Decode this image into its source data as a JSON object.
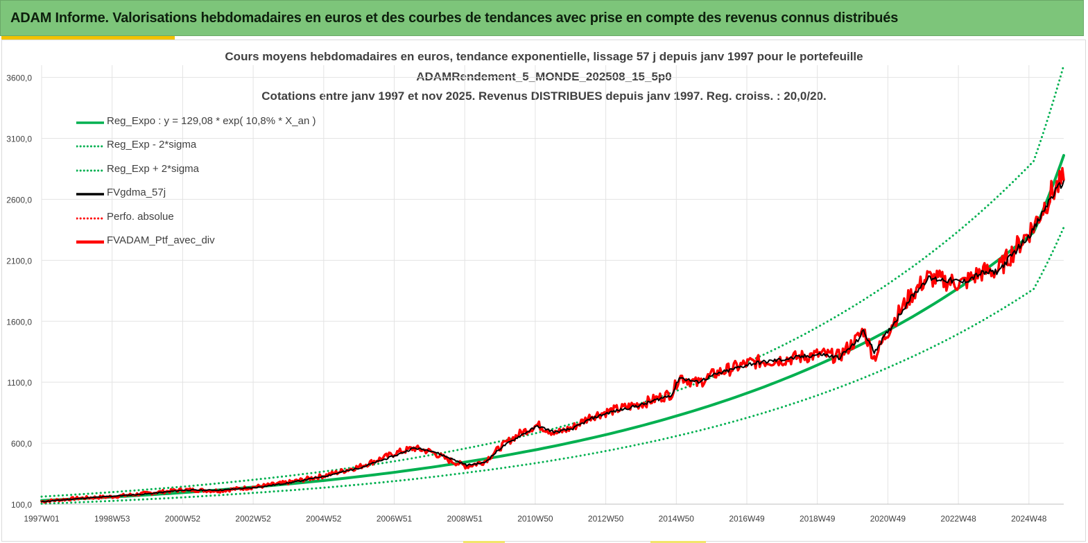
{
  "banner": {
    "title": "ADAM Informe. Valorisations hebdomadaires en euros et des courbes de tendances avec prise en compte des revenus connus distribués"
  },
  "colors": {
    "banner_bg": "#7dc57a",
    "accent": "#f2c200",
    "reg_expo": "#00b050",
    "reg_bands": "#00b050",
    "fvgdma": "#000000",
    "perfo": "#ff0000",
    "ptf": "#ff0000",
    "gridline": "#e3e3e3",
    "text": "#404040"
  },
  "chart_data": {
    "type": "line",
    "title_lines": [
      "Cours moyens hebdomadaires  en euros, tendance exponentielle, lissage 57 j depuis janv 1997 pour le portefeuille",
      "ADAMRendement_5_MONDE_202508_15_5p0",
      "Cotations  entre janv 1997 et nov 2025. Revenus DISTRIBUES depuis janv 1997. Reg. croiss. : 20,0/20."
    ],
    "xlabel": "",
    "ylabel": "",
    "x_ticks": [
      "1997W01",
      "1998W53",
      "2000W52",
      "2002W52",
      "2004W52",
      "2006W51",
      "2008W51",
      "2010W50",
      "2012W50",
      "2014W50",
      "2016W49",
      "2018W49",
      "2020W49",
      "2022W48",
      "2024W48"
    ],
    "x_range": [
      1997.0,
      2025.85
    ],
    "y_ticks": [
      "100,0",
      "600,0",
      "1100,0",
      "1600,0",
      "2100,0",
      "2600,0",
      "3100,0",
      "3600,0"
    ],
    "ylim": [
      100,
      3700
    ],
    "grid": true,
    "legend_position": "top-left",
    "series": [
      {
        "name": "Reg_Expo : y = 129,08 * exp( 10,8% *  X_an )",
        "style": "solid-thick",
        "color": "#00b050",
        "x": [
          1997,
          1999,
          2001,
          2003,
          2005,
          2007,
          2009,
          2011,
          2013,
          2015,
          2017,
          2019,
          2021,
          2023,
          2025,
          2025.85
        ],
        "y": [
          130,
          159,
          195,
          241,
          295,
          363,
          447,
          549,
          675,
          830,
          1020,
          1254,
          1542,
          1895,
          2330,
          2960
        ]
      },
      {
        "name": "Reg_Exp - 2*sigma",
        "style": "dotted",
        "color": "#00b050",
        "x": [
          1997,
          1999,
          2001,
          2003,
          2005,
          2007,
          2009,
          2011,
          2013,
          2015,
          2017,
          2019,
          2021,
          2023,
          2025,
          2025.85
        ],
        "y": [
          104,
          127,
          156,
          193,
          236,
          290,
          358,
          439,
          540,
          664,
          816,
          1003,
          1234,
          1516,
          1864,
          2370
        ]
      },
      {
        "name": "Reg_Exp + 2*sigma",
        "style": "dotted",
        "color": "#00b050",
        "x": [
          1997,
          1999,
          2001,
          2003,
          2005,
          2007,
          2009,
          2011,
          2013,
          2015,
          2017,
          2019,
          2021,
          2023,
          2025,
          2025.85
        ],
        "y": [
          162,
          199,
          244,
          301,
          369,
          454,
          559,
          686,
          844,
          1038,
          1275,
          1568,
          1928,
          2369,
          2913,
          3700
        ]
      },
      {
        "name": "FVgdma_57j",
        "style": "solid",
        "color": "#000000",
        "x": [
          1997,
          1998,
          1999,
          2000,
          2001,
          2002,
          2003,
          2004,
          2005,
          2006,
          2007,
          2007.5,
          2008,
          2008.5,
          2009,
          2009.5,
          2010,
          2010.5,
          2011,
          2011.5,
          2012,
          2012.5,
          2013,
          2014,
          2014.8,
          2015,
          2015.5,
          2016,
          2017,
          2018,
          2019,
          2019.5,
          2020,
          2020.2,
          2020.5,
          2021,
          2021.5,
          2022,
          2022.5,
          2023,
          2023.5,
          2024,
          2024.5,
          2025,
          2025.5,
          2025.85
        ],
        "y": [
          120,
          145,
          165,
          185,
          215,
          215,
          235,
          275,
          330,
          400,
          500,
          560,
          540,
          480,
          420,
          440,
          570,
          660,
          740,
          690,
          720,
          800,
          850,
          920,
          1000,
          1140,
          1100,
          1160,
          1250,
          1290,
          1330,
          1300,
          1430,
          1520,
          1350,
          1560,
          1780,
          1950,
          1940,
          1920,
          1990,
          2010,
          2180,
          2350,
          2620,
          2750
        ]
      },
      {
        "name": "Perfo. absolue",
        "style": "dotted",
        "color": "#ff0000",
        "x": [
          1997,
          1998,
          1999,
          2000,
          2001,
          2002,
          2003,
          2004,
          2005,
          2006,
          2007,
          2007.5,
          2008,
          2008.5,
          2009,
          2009.5,
          2010,
          2010.5,
          2011,
          2011.5,
          2012,
          2012.5,
          2013,
          2014,
          2014.8,
          2015,
          2015.5,
          2016,
          2017,
          2018,
          2019,
          2019.5,
          2020,
          2020.2,
          2020.5,
          2021,
          2021.5,
          2022,
          2022.5,
          2023,
          2023.5,
          2024,
          2024.5,
          2025,
          2025.5,
          2025.85
        ],
        "y": [
          122,
          148,
          162,
          190,
          218,
          210,
          240,
          280,
          335,
          410,
          520,
          560,
          530,
          460,
          410,
          450,
          580,
          680,
          750,
          680,
          730,
          820,
          860,
          930,
          1010,
          1150,
          1090,
          1170,
          1260,
          1290,
          1330,
          1310,
          1450,
          1530,
          1300,
          1580,
          1800,
          1960,
          1930,
          1910,
          2000,
          2020,
          2200,
          2380,
          2650,
          2760
        ]
      },
      {
        "name": "FVADAM_Ptf_avec_div",
        "style": "solid-thick",
        "color": "#ff0000",
        "x": [
          1997,
          1998,
          1999,
          2000,
          2001,
          2002,
          2003,
          2004,
          2005,
          2006,
          2007,
          2007.5,
          2008,
          2008.5,
          2009,
          2009.5,
          2010,
          2010.5,
          2011,
          2011.5,
          2012,
          2012.5,
          2013,
          2014,
          2014.8,
          2015,
          2015.5,
          2016,
          2017,
          2018,
          2019,
          2019.5,
          2020,
          2020.2,
          2020.5,
          2021,
          2021.5,
          2022,
          2022.5,
          2023,
          2023.5,
          2024,
          2024.5,
          2025,
          2025.5,
          2025.85
        ],
        "y": [
          122,
          148,
          162,
          190,
          218,
          210,
          240,
          280,
          335,
          410,
          520,
          560,
          530,
          460,
          410,
          450,
          580,
          680,
          750,
          680,
          730,
          820,
          860,
          930,
          1010,
          1150,
          1090,
          1170,
          1260,
          1290,
          1330,
          1310,
          1450,
          1530,
          1300,
          1580,
          1800,
          1960,
          1930,
          1910,
          2000,
          2020,
          2200,
          2380,
          2650,
          2760
        ]
      }
    ]
  }
}
